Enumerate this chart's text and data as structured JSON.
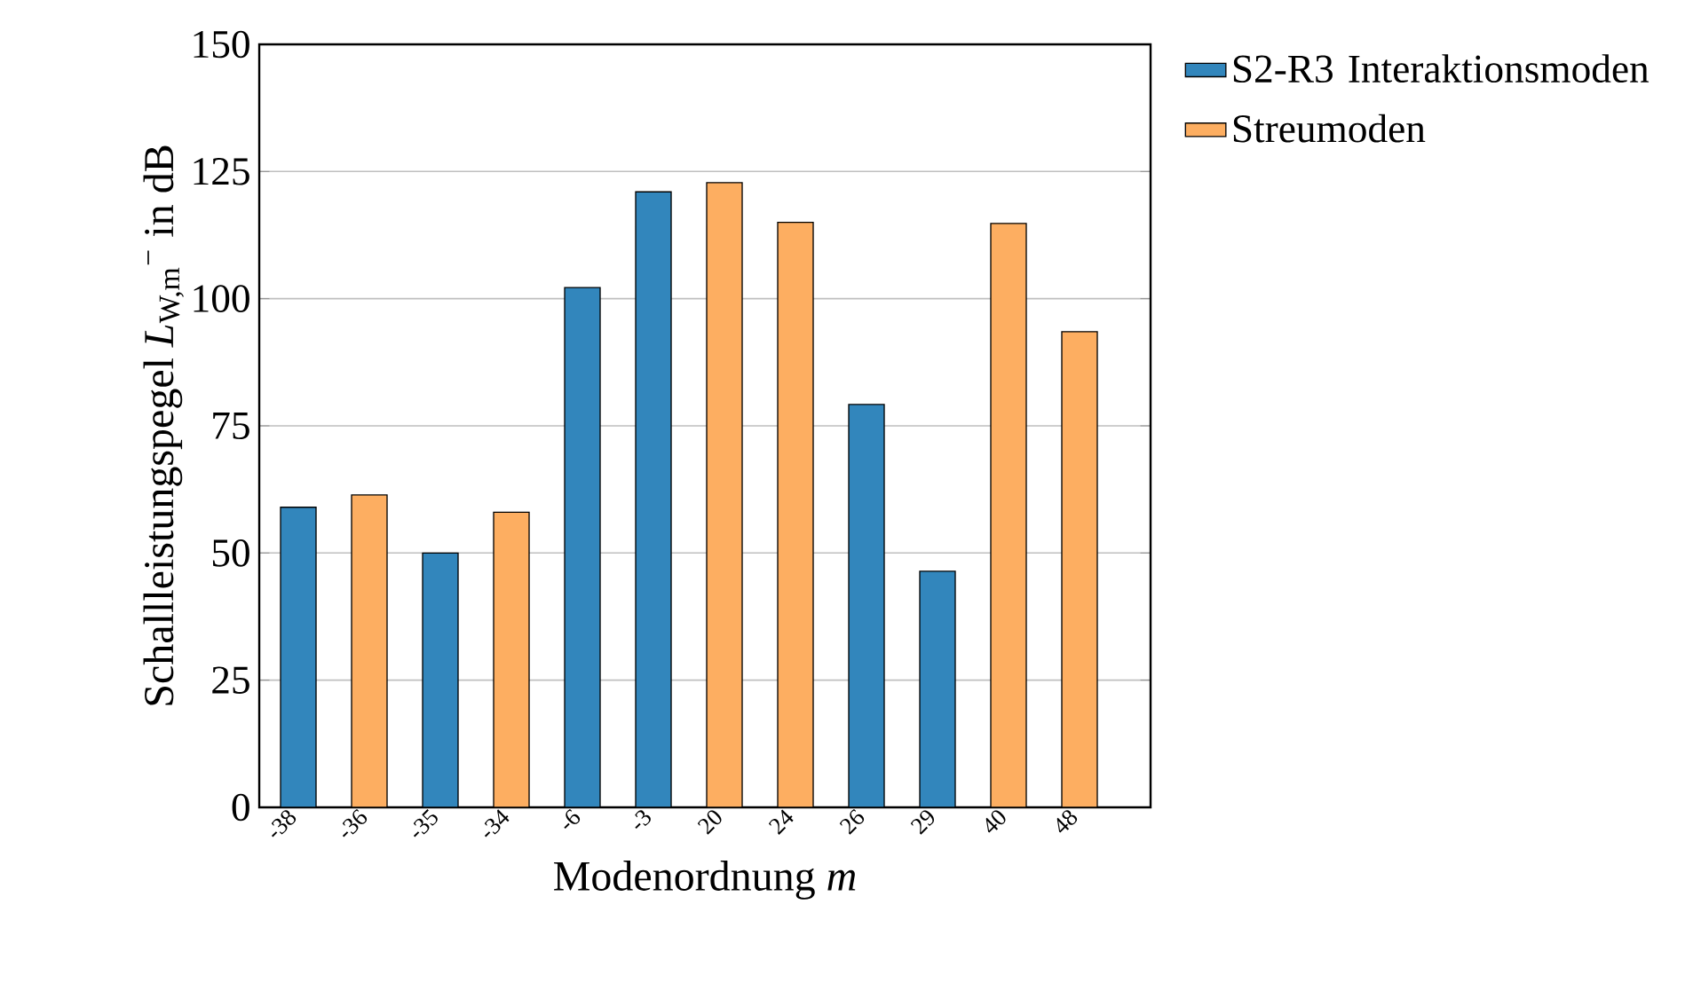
{
  "chart_data": {
    "type": "bar",
    "ylabel": "Schallleistungspegel *L*$_{W,m}$$^{−}$ in dB",
    "xlabel": "Modenordnung *m*",
    "categories": [
      "-38",
      "-36",
      "-35",
      "-34",
      "-6",
      "-3",
      "20",
      "24",
      "26",
      "29",
      "40",
      "48"
    ],
    "series": [
      {
        "name": "S2-R3 Interaktionsmoden",
        "color": "#3286bc",
        "values": [
          59,
          null,
          50,
          null,
          102.2,
          121,
          null,
          null,
          79.2,
          46.4,
          null,
          null
        ]
      },
      {
        "name": "Streumoden",
        "color": "#fdae61",
        "values": [
          null,
          61.4,
          null,
          58,
          null,
          null,
          122.8,
          115,
          null,
          null,
          114.8,
          93.5
        ]
      }
    ],
    "ylim": [
      0,
      150
    ],
    "yticks": [
      0,
      25,
      50,
      75,
      100,
      125,
      150
    ],
    "grid": "y",
    "legend": "right"
  }
}
